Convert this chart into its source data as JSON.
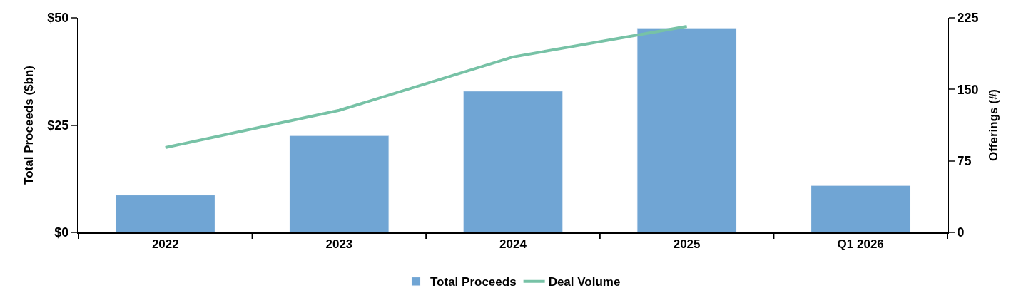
{
  "chart_data": {
    "type": "bar",
    "ylabel": "Total Proceeds ($bn)",
    "y2label": "Offerings (#)",
    "categories": [
      "2022",
      "2023",
      "2024",
      "2025",
      "Q1 2026"
    ],
    "series": [
      {
        "name": "Total Proceeds",
        "color": "#70a5d4",
        "values": [
          8.7,
          22.5,
          32.9,
          47.6,
          10.9
        ]
      },
      {
        "name": "Deal Volume",
        "type": "line",
        "axis": "y2",
        "color": "#77c2a6",
        "values": [
          89,
          128,
          184,
          216,
          null
        ]
      }
    ],
    "ylim": [
      0,
      50
    ],
    "yticks": [
      {
        "value": 0,
        "label": "$0"
      },
      {
        "value": 25,
        "label": "$25"
      },
      {
        "value": 50,
        "label": "$50"
      }
    ],
    "y2lim": [
      0,
      225
    ],
    "y2ticks": [
      0,
      75,
      150,
      225
    ],
    "legend": "bottom",
    "marker": "none",
    "line_style": "solid"
  }
}
